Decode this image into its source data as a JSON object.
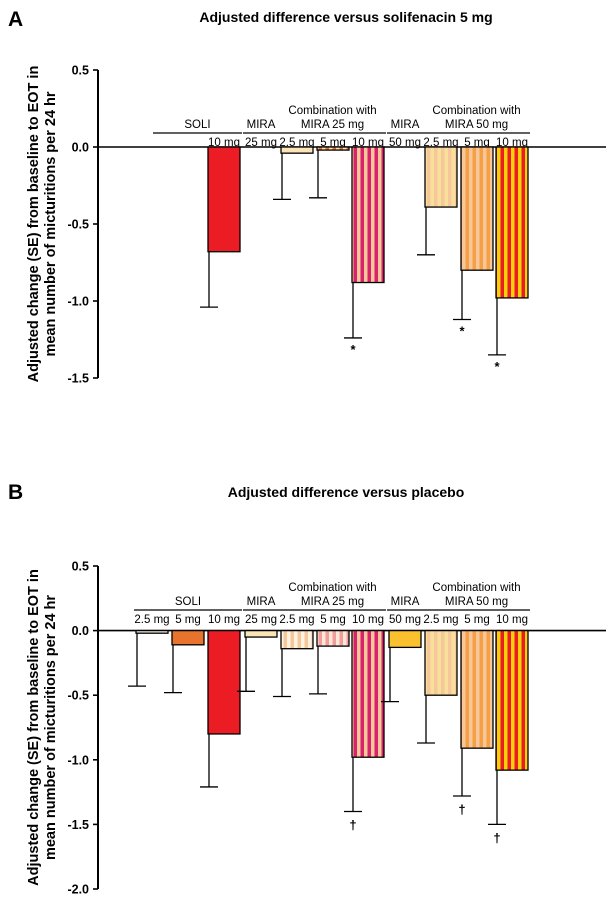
{
  "colors": {
    "soli_2_5": "#f5f0e6",
    "soli_5": "#e8732c",
    "soli_10": "#ec1c24",
    "mira_25": "#fbe4b6",
    "mira_50": "#fbc02d",
    "stripe_pale": "#f7c79c",
    "stripe_light_red": "#f39c9e",
    "stripe_magenta": "#d8236c",
    "stripe_orange": "#f6a043",
    "stripe_yellow": "#f8e09a",
    "stripe_yellow_bright": "#f4d20a",
    "stripe_red": "#ec1c24"
  },
  "chart_data": [
    {
      "type": "bar",
      "panel": "A",
      "title": "Adjusted difference versus solifenacin 5 mg",
      "ylabel_lines": [
        "Adjusted change (SE) from baseline to EOT in",
        "mean number of micturitions per 24 hr"
      ],
      "ylim": [
        -1.5,
        0.5
      ],
      "yticks": [
        "0.5",
        "0.0",
        "-0.5",
        "-1.0",
        "-1.5"
      ],
      "ytick_values": [
        0.5,
        0.0,
        -0.5,
        -1.0,
        -1.5
      ],
      "grid": false,
      "groups": [
        {
          "label": "SOLI",
          "label_lines": [
            "SOLI"
          ],
          "from": 0,
          "to": 2
        },
        {
          "label": "MIRA",
          "label_lines": [
            "MIRA"
          ],
          "from": 3,
          "to": 3
        },
        {
          "label": "Combination with MIRA 25 mg",
          "label_lines": [
            "Combination with",
            "MIRA 25 mg"
          ],
          "from": 4,
          "to": 6
        },
        {
          "label": "MIRA",
          "label_lines": [
            "MIRA"
          ],
          "from": 7,
          "to": 7
        },
        {
          "label": "Combination with MIRA 50 mg",
          "label_lines": [
            "Combination with",
            "MIRA 50 mg"
          ],
          "from": 8,
          "to": 10
        }
      ],
      "bars": [
        {
          "slot": 0,
          "dose": "",
          "value": null,
          "se_low": null,
          "color": "soli_2_5",
          "stripe": null,
          "sig": ""
        },
        {
          "slot": 1,
          "dose": "",
          "value": null,
          "se_low": null,
          "color": "soli_5",
          "stripe": null,
          "sig": ""
        },
        {
          "slot": 2,
          "dose": "10 mg",
          "value": -0.68,
          "se_low": -1.04,
          "color": "soli_10",
          "stripe": null,
          "sig": ""
        },
        {
          "slot": 3,
          "dose": "25 mg",
          "value": null,
          "se_low": null,
          "color": "mira_25",
          "stripe": null,
          "sig": ""
        },
        {
          "slot": 4,
          "dose": "2.5 mg",
          "value": -0.04,
          "se_low": -0.34,
          "color": "mira_25",
          "stripe": null,
          "sig": ""
        },
        {
          "slot": 5,
          "dose": "5 mg",
          "value": -0.02,
          "se_low": -0.33,
          "color": "soli_5",
          "stripe": "mira_25",
          "sig": ""
        },
        {
          "slot": 6,
          "dose": "10 mg",
          "value": -0.88,
          "se_low": -1.24,
          "color": "stripe_magenta",
          "stripe": "stripe_pale",
          "sig": "*"
        },
        {
          "slot": 7,
          "dose": "50 mg",
          "value": null,
          "se_low": null,
          "color": "mira_50",
          "stripe": null,
          "sig": ""
        },
        {
          "slot": 8,
          "dose": "2.5 mg",
          "value": -0.39,
          "se_low": -0.7,
          "color": "stripe_yellow",
          "stripe": "stripe_pale",
          "sig": ""
        },
        {
          "slot": 9,
          "dose": "5 mg",
          "value": -0.8,
          "se_low": -1.12,
          "color": "stripe_orange",
          "stripe": "stripe_pale",
          "sig": "*"
        },
        {
          "slot": 10,
          "dose": "10 mg",
          "value": -0.98,
          "se_low": -1.35,
          "color": "stripe_red",
          "stripe": "stripe_yellow_bright",
          "sig": "*"
        }
      ]
    },
    {
      "type": "bar",
      "panel": "B",
      "title": "Adjusted difference versus placebo",
      "ylabel_lines": [
        "Adjusted change (SE) from baseline to EOT in",
        "mean number of micturitions per 24 hr"
      ],
      "ylim": [
        -2.0,
        0.5
      ],
      "yticks": [
        "0.5",
        "0.0",
        "-0.5",
        "-1.0",
        "-1.5",
        "-2.0"
      ],
      "ytick_values": [
        0.5,
        0.0,
        -0.5,
        -1.0,
        -1.5,
        -2.0
      ],
      "grid": false,
      "groups": [
        {
          "label": "SOLI",
          "label_lines": [
            "SOLI"
          ],
          "from": 0,
          "to": 2
        },
        {
          "label": "MIRA",
          "label_lines": [
            "MIRA"
          ],
          "from": 3,
          "to": 3
        },
        {
          "label": "Combination with MIRA 25 mg",
          "label_lines": [
            "Combination with",
            "MIRA 25 mg"
          ],
          "from": 4,
          "to": 6
        },
        {
          "label": "MIRA",
          "label_lines": [
            "MIRA"
          ],
          "from": 7,
          "to": 7
        },
        {
          "label": "Combination with MIRA 50 mg",
          "label_lines": [
            "Combination with",
            "MIRA 50 mg"
          ],
          "from": 8,
          "to": 10
        }
      ],
      "bars": [
        {
          "slot": 0,
          "dose": "2.5 mg",
          "value": -0.02,
          "se_low": -0.43,
          "color": "soli_2_5",
          "stripe": null,
          "sig": ""
        },
        {
          "slot": 1,
          "dose": "5 mg",
          "value": -0.11,
          "se_low": -0.48,
          "color": "soli_5",
          "stripe": null,
          "sig": ""
        },
        {
          "slot": 2,
          "dose": "10 mg",
          "value": -0.8,
          "se_low": -1.21,
          "color": "soli_10",
          "stripe": null,
          "sig": ""
        },
        {
          "slot": 3,
          "dose": "25 mg",
          "value": -0.05,
          "se_low": -0.47,
          "color": "mira_25",
          "stripe": null,
          "sig": ""
        },
        {
          "slot": 4,
          "dose": "2.5 mg",
          "value": -0.14,
          "se_low": -0.51,
          "color": "stripe_pale",
          "stripe": "#fdf3e2",
          "sig": ""
        },
        {
          "slot": 5,
          "dose": "5 mg",
          "value": -0.12,
          "se_low": -0.49,
          "color": "stripe_light_red",
          "stripe": "#fbe8d6",
          "sig": ""
        },
        {
          "slot": 6,
          "dose": "10 mg",
          "value": -0.98,
          "se_low": -1.4,
          "color": "stripe_magenta",
          "stripe": "stripe_pale",
          "sig": "†"
        },
        {
          "slot": 7,
          "dose": "50 mg",
          "value": -0.13,
          "se_low": -0.55,
          "color": "mira_50",
          "stripe": null,
          "sig": ""
        },
        {
          "slot": 8,
          "dose": "2.5 mg",
          "value": -0.5,
          "se_low": -0.87,
          "color": "stripe_yellow",
          "stripe": "stripe_pale",
          "sig": ""
        },
        {
          "slot": 9,
          "dose": "5 mg",
          "value": -0.91,
          "se_low": -1.28,
          "color": "stripe_orange",
          "stripe": "stripe_pale",
          "sig": "†"
        },
        {
          "slot": 10,
          "dose": "10 mg",
          "value": -1.08,
          "se_low": -1.5,
          "color": "stripe_red",
          "stripe": "stripe_yellow_bright",
          "sig": "†"
        }
      ]
    }
  ]
}
